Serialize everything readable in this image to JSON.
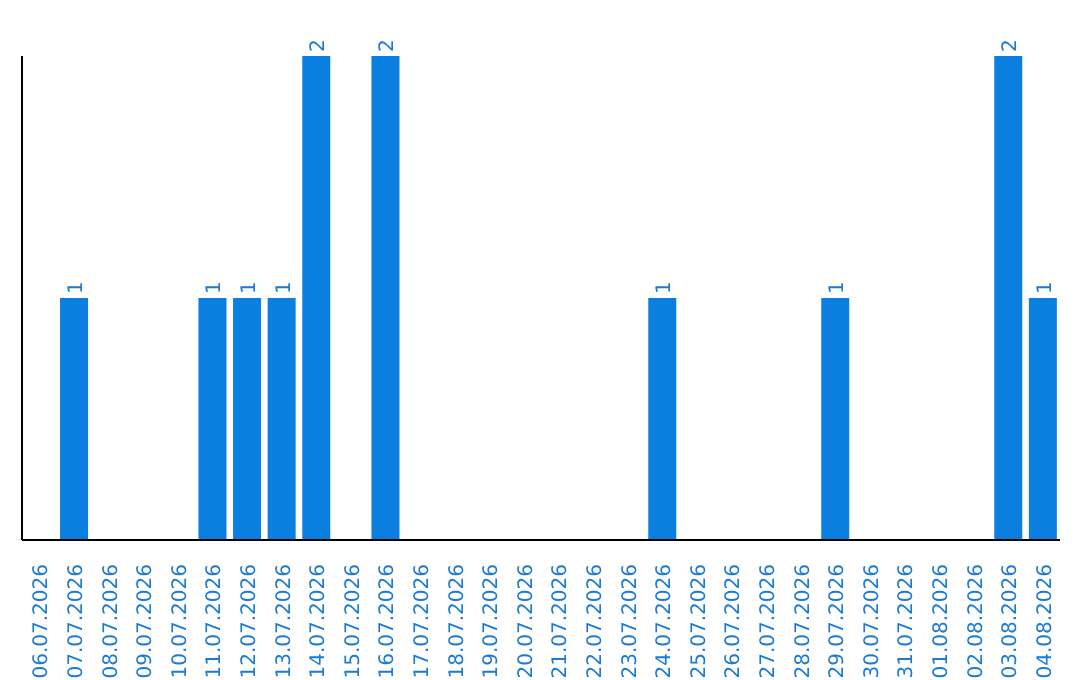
{
  "chart_data": {
    "type": "bar",
    "categories": [
      "06.07.2026",
      "07.07.2026",
      "08.07.2026",
      "09.07.2026",
      "10.07.2026",
      "11.07.2026",
      "12.07.2026",
      "13.07.2026",
      "14.07.2026",
      "15.07.2026",
      "16.07.2026",
      "17.07.2026",
      "18.07.2026",
      "19.07.2026",
      "20.07.2026",
      "21.07.2026",
      "22.07.2026",
      "23.07.2026",
      "24.07.2026",
      "25.07.2026",
      "26.07.2026",
      "27.07.2026",
      "28.07.2026",
      "29.07.2026",
      "30.07.2026",
      "31.07.2026",
      "01.08.2026",
      "02.08.2026",
      "03.08.2026",
      "04.08.2026"
    ],
    "values": [
      0,
      1,
      0,
      0,
      0,
      1,
      1,
      1,
      2,
      0,
      2,
      0,
      0,
      0,
      0,
      0,
      0,
      0,
      1,
      0,
      0,
      0,
      0,
      1,
      0,
      0,
      0,
      0,
      2,
      1
    ],
    "value_labels": [
      null,
      "1",
      null,
      null,
      null,
      "1",
      "1",
      "1",
      "2",
      null,
      "2",
      null,
      null,
      null,
      null,
      null,
      null,
      null,
      "1",
      null,
      null,
      null,
      null,
      "1",
      null,
      null,
      null,
      null,
      "2",
      "1"
    ],
    "color": "#0a7fe0",
    "grid": false,
    "legend": false
  }
}
